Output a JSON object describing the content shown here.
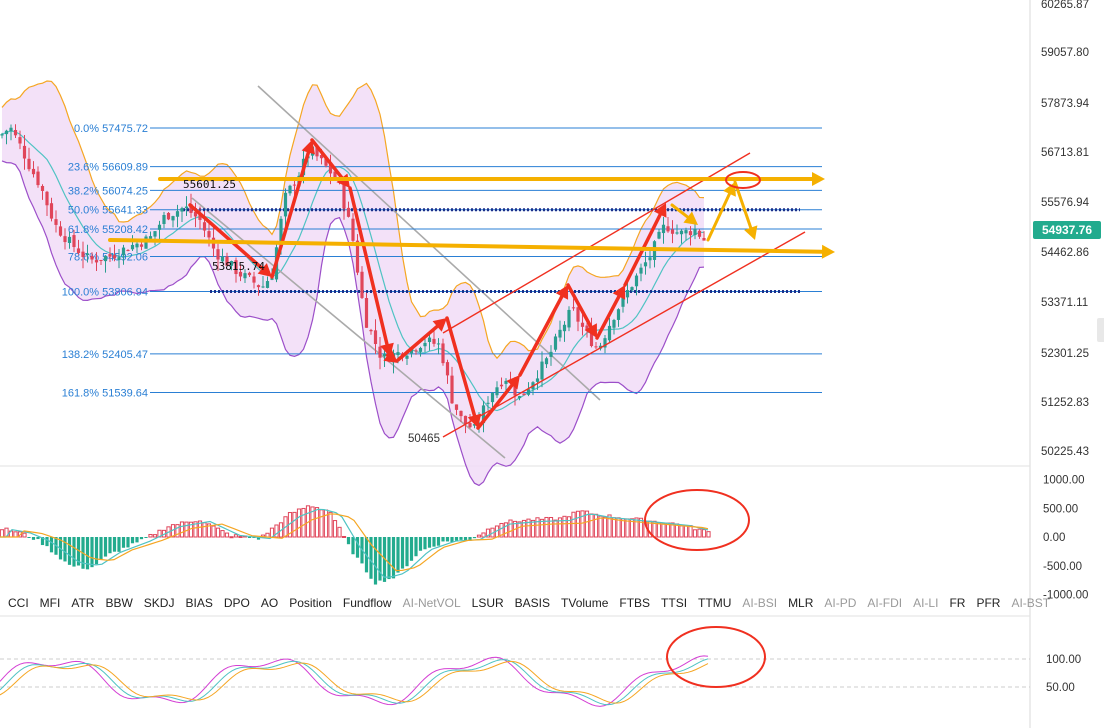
{
  "chart_data": {
    "type": "candlestick",
    "symbol_price_badge": "54937.76",
    "price_axis": {
      "ticks": [
        "60265.87",
        "59057.80",
        "57873.94",
        "56713.81",
        "55576.94",
        "54462.86",
        "53371.11",
        "52301.25",
        "51252.83",
        "50225.43"
      ],
      "range": [
        50050,
        60300
      ]
    },
    "fib_levels": [
      {
        "label": "0.0% 57475.72",
        "value": 57475.72
      },
      {
        "label": "23.6% 56609.89",
        "value": 56609.89
      },
      {
        "label": "38.2% 56074.25",
        "value": 56074.25
      },
      {
        "label": "50.0% 55641.33",
        "value": 55641.33
      },
      {
        "label": "61.8% 55208.42",
        "value": 55208.42
      },
      {
        "label": "78.6% 54592.06",
        "value": 54592.06
      },
      {
        "label": "100.0% 53806.94",
        "value": 53806.94
      },
      {
        "label": "138.2% 52405.47",
        "value": 52405.47
      },
      {
        "label": "161.8% 51539.64",
        "value": 51539.64
      }
    ],
    "annotations": [
      "55601.25",
      "53815.74",
      "50465"
    ],
    "macd_axis": {
      "ticks": [
        "1000.00",
        "500.00",
        "0.00",
        "-500.00",
        "-1000.00"
      ],
      "range": [
        -1000,
        1000
      ]
    },
    "osc_axis": {
      "ticks": [
        "100.00",
        "50.00"
      ],
      "range": [
        20,
        120
      ]
    },
    "colors": {
      "up": "#2a9d8f",
      "down": "#e0455a",
      "fib": "#2a7fd4",
      "arrow_red": "#f03020",
      "arrow_yellow": "#f5b000",
      "band": "#f5a623",
      "band_fill": "#f1dcf7",
      "mid": "#4fc3c3"
    }
  },
  "indicator_tabs": [
    {
      "label": "CCI",
      "dim": false
    },
    {
      "label": "MFI",
      "dim": false
    },
    {
      "label": "ATR",
      "dim": false
    },
    {
      "label": "BBW",
      "dim": false
    },
    {
      "label": "SKDJ",
      "dim": false
    },
    {
      "label": "BIAS",
      "dim": false
    },
    {
      "label": "DPO",
      "dim": false
    },
    {
      "label": "AO",
      "dim": false
    },
    {
      "label": "Position",
      "dim": false
    },
    {
      "label": "Fundflow",
      "dim": false
    },
    {
      "label": "AI-NetVOL",
      "dim": true
    },
    {
      "label": "LSUR",
      "dim": false
    },
    {
      "label": "BASIS",
      "dim": false
    },
    {
      "label": "TVolume",
      "dim": false
    },
    {
      "label": "FTBS",
      "dim": false
    },
    {
      "label": "TTSI",
      "dim": false
    },
    {
      "label": "TTMU",
      "dim": false
    },
    {
      "label": "AI-BSI",
      "dim": true
    },
    {
      "label": "MLR",
      "dim": false
    },
    {
      "label": "AI-PD",
      "dim": true
    },
    {
      "label": "AI-FDI",
      "dim": true
    },
    {
      "label": "AI-LI",
      "dim": true
    },
    {
      "label": "FR",
      "dim": false
    },
    {
      "label": "PFR",
      "dim": false
    },
    {
      "label": "AI-BST",
      "dim": true
    }
  ]
}
